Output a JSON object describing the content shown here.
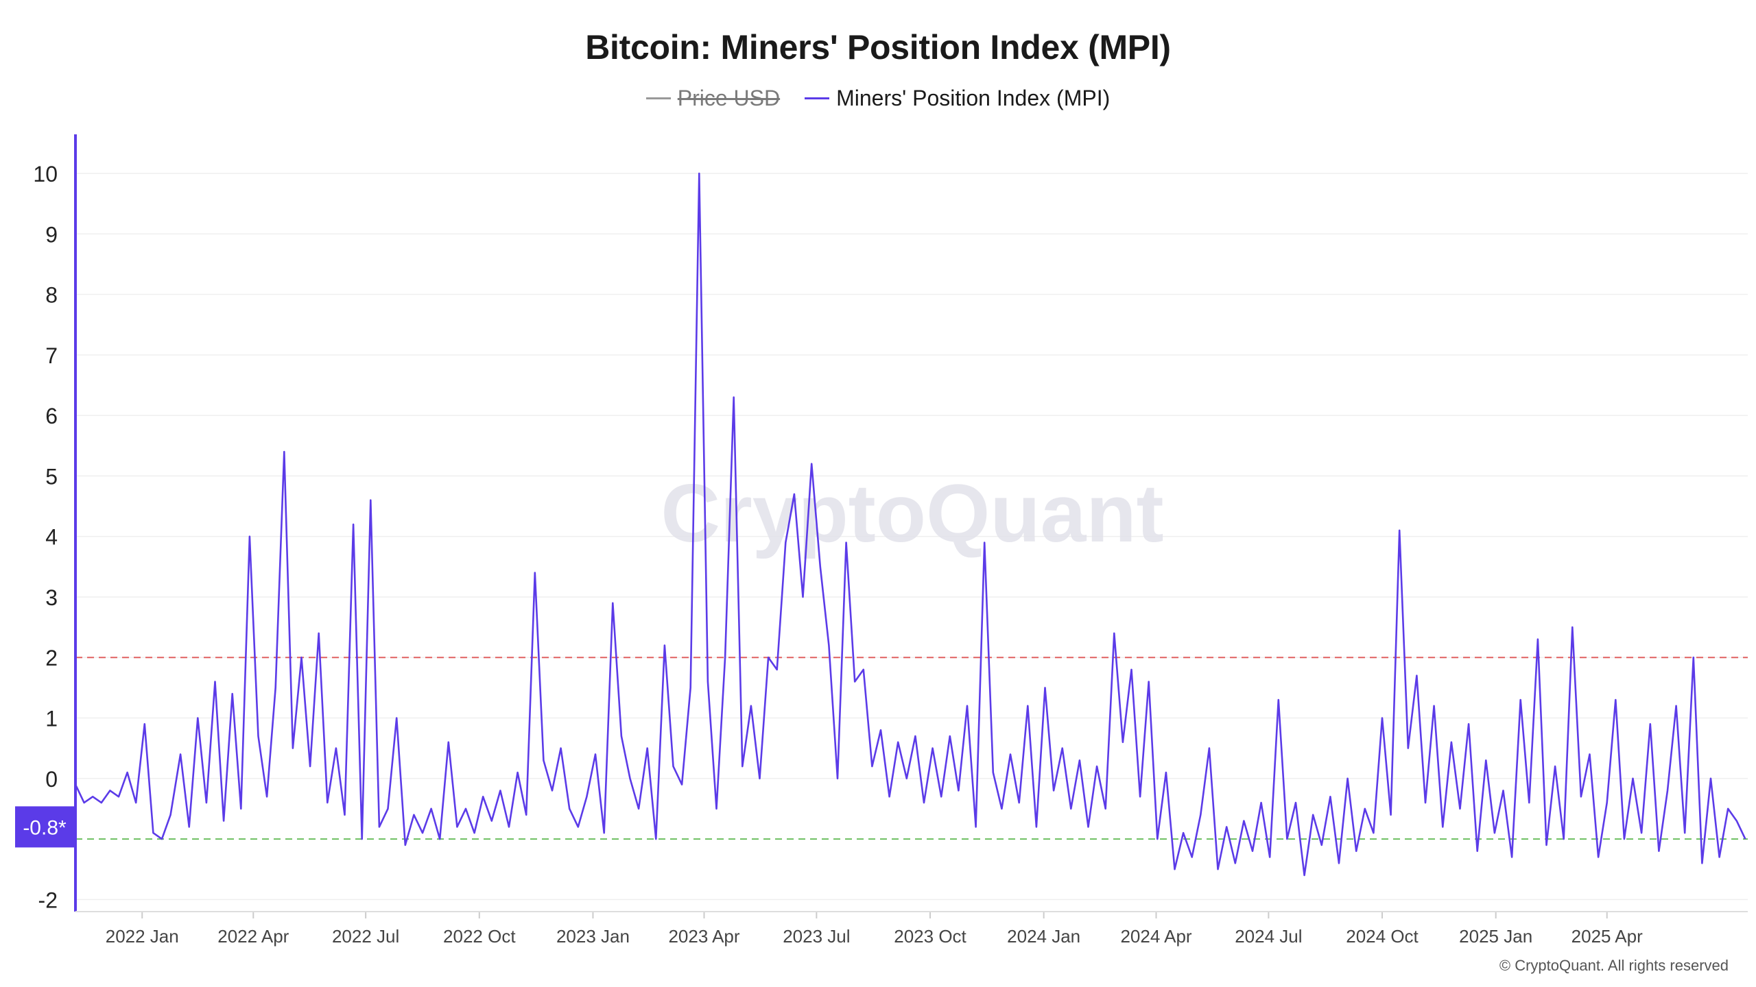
{
  "title": "Bitcoin: Miners' Position Index (MPI)",
  "legend": [
    {
      "label": "Price USD",
      "color": "#999999",
      "hidden": true
    },
    {
      "label": "Miners' Position Index (MPI)",
      "color": "#5b3be8",
      "hidden": false
    }
  ],
  "watermark": "CryptoQuant",
  "footer": "© CryptoQuant. All rights reserved",
  "colors": {
    "series": "#5b3be8",
    "upper_threshold": "#e06060",
    "lower_threshold": "#6cbf60",
    "axis": "#5b3be8"
  },
  "chart_data": {
    "type": "line",
    "y_axis": {
      "min": -2.2,
      "max": 10.6,
      "ticks": [
        "10",
        "9",
        "8",
        "7",
        "6",
        "5",
        "4",
        "3",
        "2",
        "1",
        "0",
        "-2"
      ],
      "tick_values": [
        10,
        9,
        8,
        7,
        6,
        5,
        4,
        3,
        2,
        1,
        0,
        -2
      ]
    },
    "x_axis": {
      "start": "2021-11-08",
      "end": "2025-07-24",
      "ticks": [
        "2022 Jan",
        "2022 Apr",
        "2022 Jul",
        "2022 Oct",
        "2023 Jan",
        "2023 Apr",
        "2023 Jul",
        "2023 Oct",
        "2024 Jan",
        "2024 Apr",
        "2024 Jul",
        "2024 Oct",
        "2025 Jan",
        "2025 Apr"
      ],
      "tick_dates": [
        "2022-01-01",
        "2022-04-01",
        "2022-07-01",
        "2022-10-01",
        "2023-01-01",
        "2023-04-01",
        "2023-07-01",
        "2023-10-01",
        "2024-01-01",
        "2024-04-01",
        "2024-07-01",
        "2024-10-01",
        "2025-01-01",
        "2025-04-01"
      ]
    },
    "thresholds": [
      {
        "value": 2,
        "kind": "upper"
      },
      {
        "value": -1,
        "kind": "lower"
      }
    ],
    "current_value_label": "-0.8*",
    "current_value": -0.8,
    "series": [
      {
        "name": "Miners' Position Index (MPI)",
        "points": [
          [
            "2021-11-08",
            -0.1
          ],
          [
            "2021-11-15",
            -0.4
          ],
          [
            "2021-11-22",
            -0.3
          ],
          [
            "2021-11-29",
            -0.4
          ],
          [
            "2021-12-06",
            -0.2
          ],
          [
            "2021-12-13",
            -0.3
          ],
          [
            "2021-12-20",
            0.1
          ],
          [
            "2021-12-27",
            -0.4
          ],
          [
            "2022-01-03",
            0.9
          ],
          [
            "2022-01-10",
            -0.9
          ],
          [
            "2022-01-17",
            -1.0
          ],
          [
            "2022-01-24",
            -0.6
          ],
          [
            "2022-02-01",
            0.4
          ],
          [
            "2022-02-08",
            -0.8
          ],
          [
            "2022-02-15",
            1.0
          ],
          [
            "2022-02-22",
            -0.4
          ],
          [
            "2022-03-01",
            1.6
          ],
          [
            "2022-03-08",
            -0.7
          ],
          [
            "2022-03-15",
            1.4
          ],
          [
            "2022-03-22",
            -0.5
          ],
          [
            "2022-03-29",
            4.0
          ],
          [
            "2022-04-05",
            0.7
          ],
          [
            "2022-04-12",
            -0.3
          ],
          [
            "2022-04-19",
            1.5
          ],
          [
            "2022-04-26",
            5.4
          ],
          [
            "2022-05-03",
            0.5
          ],
          [
            "2022-05-10",
            2.0
          ],
          [
            "2022-05-17",
            0.2
          ],
          [
            "2022-05-24",
            2.4
          ],
          [
            "2022-05-31",
            -0.4
          ],
          [
            "2022-06-07",
            0.5
          ],
          [
            "2022-06-14",
            -0.6
          ],
          [
            "2022-06-21",
            4.2
          ],
          [
            "2022-06-28",
            -1.0
          ],
          [
            "2022-07-05",
            4.6
          ],
          [
            "2022-07-12",
            -0.8
          ],
          [
            "2022-07-19",
            -0.5
          ],
          [
            "2022-07-26",
            1.0
          ],
          [
            "2022-08-02",
            -1.1
          ],
          [
            "2022-08-09",
            -0.6
          ],
          [
            "2022-08-16",
            -0.9
          ],
          [
            "2022-08-23",
            -0.5
          ],
          [
            "2022-08-30",
            -1.0
          ],
          [
            "2022-09-06",
            0.6
          ],
          [
            "2022-09-13",
            -0.8
          ],
          [
            "2022-09-20",
            -0.5
          ],
          [
            "2022-09-27",
            -0.9
          ],
          [
            "2022-10-04",
            -0.3
          ],
          [
            "2022-10-11",
            -0.7
          ],
          [
            "2022-10-18",
            -0.2
          ],
          [
            "2022-10-25",
            -0.8
          ],
          [
            "2022-11-01",
            0.1
          ],
          [
            "2022-11-08",
            -0.6
          ],
          [
            "2022-11-15",
            3.4
          ],
          [
            "2022-11-22",
            0.3
          ],
          [
            "2022-11-29",
            -0.2
          ],
          [
            "2022-12-06",
            0.5
          ],
          [
            "2022-12-13",
            -0.5
          ],
          [
            "2022-12-20",
            -0.8
          ],
          [
            "2022-12-27",
            -0.3
          ],
          [
            "2023-01-03",
            0.4
          ],
          [
            "2023-01-10",
            -0.9
          ],
          [
            "2023-01-17",
            2.9
          ],
          [
            "2023-01-24",
            0.7
          ],
          [
            "2023-01-31",
            0.0
          ],
          [
            "2023-02-07",
            -0.5
          ],
          [
            "2023-02-14",
            0.5
          ],
          [
            "2023-02-21",
            -1.0
          ],
          [
            "2023-02-28",
            2.2
          ],
          [
            "2023-03-07",
            0.2
          ],
          [
            "2023-03-14",
            -0.1
          ],
          [
            "2023-03-21",
            1.5
          ],
          [
            "2023-03-28",
            10.0
          ],
          [
            "2023-04-04",
            1.6
          ],
          [
            "2023-04-11",
            -0.5
          ],
          [
            "2023-04-18",
            2.0
          ],
          [
            "2023-04-25",
            6.3
          ],
          [
            "2023-05-02",
            0.2
          ],
          [
            "2023-05-09",
            1.2
          ],
          [
            "2023-05-16",
            0.0
          ],
          [
            "2023-05-23",
            2.0
          ],
          [
            "2023-05-30",
            1.8
          ],
          [
            "2023-06-06",
            3.9
          ],
          [
            "2023-06-13",
            4.7
          ],
          [
            "2023-06-20",
            3.0
          ],
          [
            "2023-06-27",
            5.2
          ],
          [
            "2023-07-04",
            3.5
          ],
          [
            "2023-07-11",
            2.2
          ],
          [
            "2023-07-18",
            0.0
          ],
          [
            "2023-07-25",
            3.9
          ],
          [
            "2023-08-01",
            1.6
          ],
          [
            "2023-08-08",
            1.8
          ],
          [
            "2023-08-15",
            0.2
          ],
          [
            "2023-08-22",
            0.8
          ],
          [
            "2023-08-29",
            -0.3
          ],
          [
            "2023-09-05",
            0.6
          ],
          [
            "2023-09-12",
            0.0
          ],
          [
            "2023-09-19",
            0.7
          ],
          [
            "2023-09-26",
            -0.4
          ],
          [
            "2023-10-03",
            0.5
          ],
          [
            "2023-10-10",
            -0.3
          ],
          [
            "2023-10-17",
            0.7
          ],
          [
            "2023-10-24",
            -0.2
          ],
          [
            "2023-10-31",
            1.2
          ],
          [
            "2023-11-07",
            -0.8
          ],
          [
            "2023-11-14",
            3.9
          ],
          [
            "2023-11-21",
            0.1
          ],
          [
            "2023-11-28",
            -0.5
          ],
          [
            "2023-12-05",
            0.4
          ],
          [
            "2023-12-12",
            -0.4
          ],
          [
            "2023-12-19",
            1.2
          ],
          [
            "2023-12-26",
            -0.8
          ],
          [
            "2024-01-02",
            1.5
          ],
          [
            "2024-01-09",
            -0.2
          ],
          [
            "2024-01-16",
            0.5
          ],
          [
            "2024-01-23",
            -0.5
          ],
          [
            "2024-01-30",
            0.3
          ],
          [
            "2024-02-06",
            -0.8
          ],
          [
            "2024-02-13",
            0.2
          ],
          [
            "2024-02-20",
            -0.5
          ],
          [
            "2024-02-27",
            2.4
          ],
          [
            "2024-03-05",
            0.6
          ],
          [
            "2024-03-12",
            1.8
          ],
          [
            "2024-03-19",
            -0.3
          ],
          [
            "2024-03-26",
            1.6
          ],
          [
            "2024-04-02",
            -1.0
          ],
          [
            "2024-04-09",
            0.1
          ],
          [
            "2024-04-16",
            -1.5
          ],
          [
            "2024-04-23",
            -0.9
          ],
          [
            "2024-04-30",
            -1.3
          ],
          [
            "2024-05-07",
            -0.6
          ],
          [
            "2024-05-14",
            0.5
          ],
          [
            "2024-05-21",
            -1.5
          ],
          [
            "2024-05-28",
            -0.8
          ],
          [
            "2024-06-04",
            -1.4
          ],
          [
            "2024-06-11",
            -0.7
          ],
          [
            "2024-06-18",
            -1.2
          ],
          [
            "2024-06-25",
            -0.4
          ],
          [
            "2024-07-02",
            -1.3
          ],
          [
            "2024-07-09",
            1.3
          ],
          [
            "2024-07-16",
            -1.0
          ],
          [
            "2024-07-23",
            -0.4
          ],
          [
            "2024-07-30",
            -1.6
          ],
          [
            "2024-08-06",
            -0.6
          ],
          [
            "2024-08-13",
            -1.1
          ],
          [
            "2024-08-20",
            -0.3
          ],
          [
            "2024-08-27",
            -1.4
          ],
          [
            "2024-09-03",
            0.0
          ],
          [
            "2024-09-10",
            -1.2
          ],
          [
            "2024-09-17",
            -0.5
          ],
          [
            "2024-09-24",
            -0.9
          ],
          [
            "2024-10-01",
            1.0
          ],
          [
            "2024-10-08",
            -0.6
          ],
          [
            "2024-10-15",
            4.1
          ],
          [
            "2024-10-22",
            0.5
          ],
          [
            "2024-10-29",
            1.7
          ],
          [
            "2024-11-05",
            -0.4
          ],
          [
            "2024-11-12",
            1.2
          ],
          [
            "2024-11-19",
            -0.8
          ],
          [
            "2024-11-26",
            0.6
          ],
          [
            "2024-12-03",
            -0.5
          ],
          [
            "2024-12-10",
            0.9
          ],
          [
            "2024-12-17",
            -1.2
          ],
          [
            "2024-12-24",
            0.3
          ],
          [
            "2024-12-31",
            -0.9
          ],
          [
            "2025-01-07",
            -0.2
          ],
          [
            "2025-01-14",
            -1.3
          ],
          [
            "2025-01-21",
            1.3
          ],
          [
            "2025-01-28",
            -0.4
          ],
          [
            "2025-02-04",
            2.3
          ],
          [
            "2025-02-11",
            -1.1
          ],
          [
            "2025-02-18",
            0.2
          ],
          [
            "2025-02-25",
            -1.0
          ],
          [
            "2025-03-04",
            2.5
          ],
          [
            "2025-03-11",
            -0.3
          ],
          [
            "2025-03-18",
            0.4
          ],
          [
            "2025-03-25",
            -1.3
          ],
          [
            "2025-04-01",
            -0.4
          ],
          [
            "2025-04-08",
            1.3
          ],
          [
            "2025-04-15",
            -1.0
          ],
          [
            "2025-04-22",
            0.0
          ],
          [
            "2025-04-29",
            -0.9
          ],
          [
            "2025-05-06",
            0.9
          ],
          [
            "2025-05-13",
            -1.2
          ],
          [
            "2025-05-20",
            -0.2
          ],
          [
            "2025-05-27",
            1.2
          ],
          [
            "2025-06-03",
            -0.9
          ],
          [
            "2025-06-10",
            2.0
          ],
          [
            "2025-06-17",
            -1.4
          ],
          [
            "2025-06-24",
            0.0
          ],
          [
            "2025-07-01",
            -1.3
          ],
          [
            "2025-07-08",
            -0.5
          ],
          [
            "2025-07-15",
            -0.7
          ],
          [
            "2025-07-22",
            -1.0
          ]
        ]
      }
    ],
    "grid": "horizontal",
    "legend_position": "top-center"
  }
}
